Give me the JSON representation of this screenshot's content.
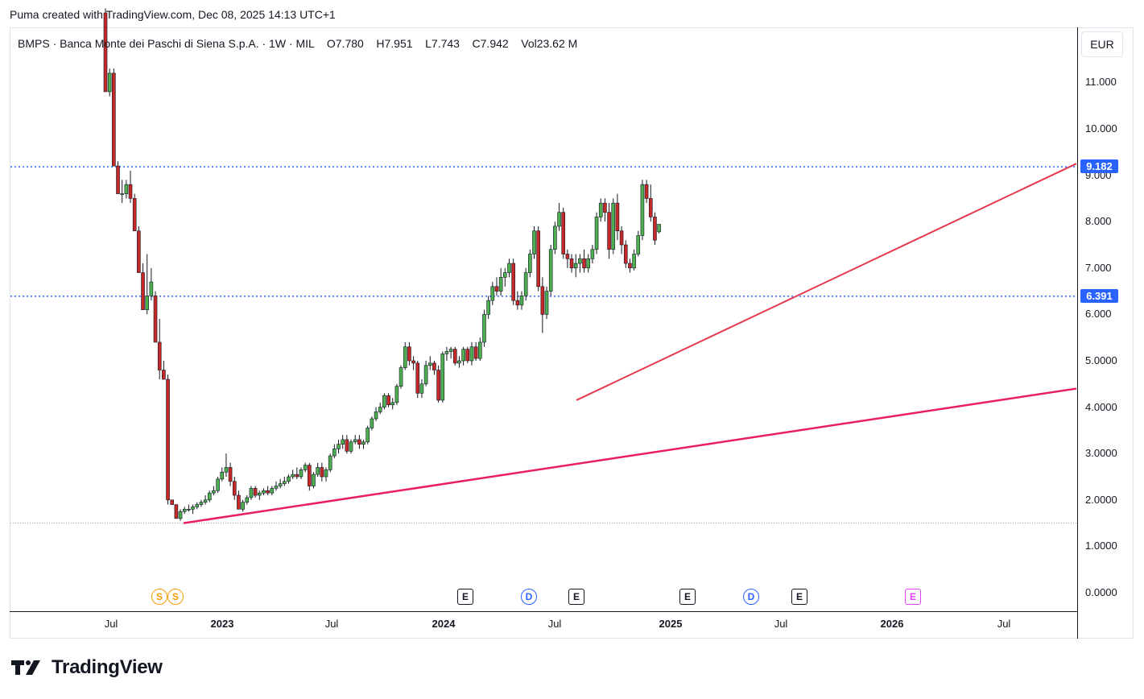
{
  "caption": "Puma created with TradingView.com, Dec 08, 2025 14:13 UTC+1",
  "legend": {
    "symbol": "BMPS · Banca Monte dei Paschi di Siena S.p.A. · 1W · MIL",
    "o_label": "O",
    "o_value": "7.780",
    "h_label": "H",
    "h_value": "7.951",
    "l_label": "L",
    "l_value": "7.743",
    "c_label": "C",
    "c_value": "7.942",
    "vol_label": "Vol",
    "vol_value": "23.62 M"
  },
  "currency": "EUR",
  "price_ticks": [
    "11.000",
    "10.000",
    "9.000",
    "8.000",
    "7.000",
    "6.000",
    "5.0000",
    "4.0000",
    "3.0000",
    "2.0000",
    "1.0000",
    "0.0000"
  ],
  "price_labels": [
    "9.182",
    "6.391"
  ],
  "time_ticks": [
    {
      "label": "Jul",
      "bold": false
    },
    {
      "label": "2023",
      "bold": true
    },
    {
      "label": "Jul",
      "bold": false
    },
    {
      "label": "2024",
      "bold": true
    },
    {
      "label": "Jul",
      "bold": false
    },
    {
      "label": "2025",
      "bold": true
    },
    {
      "label": "Jul",
      "bold": false
    },
    {
      "label": "2026",
      "bold": true
    },
    {
      "label": "Jul",
      "bold": false
    }
  ],
  "events": [
    {
      "type": "split",
      "label": "S"
    },
    {
      "type": "split",
      "label": "S"
    },
    {
      "type": "earn",
      "label": "E"
    },
    {
      "type": "div",
      "label": "D"
    },
    {
      "type": "earn",
      "label": "E"
    },
    {
      "type": "earn",
      "label": "E"
    },
    {
      "type": "div",
      "label": "D"
    },
    {
      "type": "earn",
      "label": "E"
    },
    {
      "type": "future",
      "label": "E"
    }
  ],
  "colors": {
    "up": "#4caf50",
    "down": "#c62828",
    "hline": "#2962ff",
    "trend1": "#e53950",
    "trend2": "#e91e63"
  },
  "chart_data": {
    "type": "candlestick",
    "timeframe": "1W",
    "price_range": [
      0,
      11.5
    ],
    "horizontal_levels": [
      9.182,
      6.391,
      1.5
    ],
    "candles_ohlc_weekly": [
      [
        12.5,
        12.6,
        10.8,
        10.8
      ],
      [
        10.8,
        11.3,
        10.7,
        11.2
      ],
      [
        11.2,
        11.3,
        9.2,
        9.2
      ],
      [
        9.2,
        9.3,
        8.6,
        8.6
      ],
      [
        8.6,
        8.9,
        8.4,
        8.6
      ],
      [
        8.6,
        8.9,
        8.5,
        8.8
      ],
      [
        8.8,
        9.1,
        8.4,
        8.5
      ],
      [
        8.5,
        8.6,
        7.8,
        7.8
      ],
      [
        7.8,
        7.9,
        6.9,
        6.9
      ],
      [
        6.9,
        7.1,
        6.1,
        6.1
      ],
      [
        6.1,
        7.3,
        6.0,
        6.4
      ],
      [
        6.4,
        7.0,
        6.3,
        6.7
      ],
      [
        6.4,
        6.5,
        5.4,
        5.4
      ],
      [
        5.4,
        5.9,
        4.6,
        4.8
      ],
      [
        4.8,
        5.0,
        4.6,
        4.6
      ],
      [
        4.6,
        4.7,
        1.9,
        2.0
      ],
      [
        2.0,
        2.0,
        1.9,
        1.9
      ],
      [
        1.9,
        1.9,
        1.6,
        1.6
      ],
      [
        1.6,
        1.8,
        1.55,
        1.75
      ],
      [
        1.75,
        1.85,
        1.7,
        1.8
      ],
      [
        1.8,
        1.9,
        1.75,
        1.8
      ],
      [
        1.8,
        1.9,
        1.7,
        1.85
      ],
      [
        1.85,
        1.95,
        1.8,
        1.9
      ],
      [
        1.9,
        2.0,
        1.85,
        1.95
      ],
      [
        1.95,
        2.1,
        1.9,
        2.0
      ],
      [
        2.0,
        2.2,
        1.95,
        2.15
      ],
      [
        2.15,
        2.3,
        2.1,
        2.2
      ],
      [
        2.2,
        2.5,
        2.15,
        2.45
      ],
      [
        2.45,
        2.7,
        2.4,
        2.6
      ],
      [
        2.6,
        3.0,
        2.5,
        2.7
      ],
      [
        2.7,
        2.8,
        2.3,
        2.4
      ],
      [
        2.4,
        2.5,
        2.0,
        2.1
      ],
      [
        2.1,
        2.2,
        1.8,
        1.8
      ],
      [
        1.8,
        2.0,
        1.75,
        1.95
      ],
      [
        1.95,
        2.1,
        1.9,
        2.05
      ],
      [
        2.05,
        2.3,
        2.0,
        2.25
      ],
      [
        2.25,
        2.3,
        2.05,
        2.1
      ],
      [
        2.1,
        2.2,
        2.0,
        2.15
      ],
      [
        2.15,
        2.25,
        2.1,
        2.2
      ],
      [
        2.2,
        2.3,
        2.1,
        2.15
      ],
      [
        2.15,
        2.3,
        2.1,
        2.25
      ],
      [
        2.25,
        2.4,
        2.2,
        2.3
      ],
      [
        2.3,
        2.45,
        2.25,
        2.35
      ],
      [
        2.35,
        2.5,
        2.3,
        2.4
      ],
      [
        2.4,
        2.55,
        2.35,
        2.5
      ],
      [
        2.5,
        2.65,
        2.45,
        2.55
      ],
      [
        2.55,
        2.7,
        2.45,
        2.5
      ],
      [
        2.5,
        2.7,
        2.45,
        2.65
      ],
      [
        2.65,
        2.8,
        2.6,
        2.75
      ],
      [
        2.75,
        2.8,
        2.2,
        2.3
      ],
      [
        2.3,
        2.6,
        2.25,
        2.55
      ],
      [
        2.55,
        2.8,
        2.5,
        2.7
      ],
      [
        2.7,
        2.8,
        2.4,
        2.5
      ],
      [
        2.5,
        2.7,
        2.4,
        2.65
      ],
      [
        2.65,
        3.0,
        2.6,
        2.95
      ],
      [
        2.95,
        3.2,
        2.9,
        3.1
      ],
      [
        3.1,
        3.3,
        3.0,
        3.2
      ],
      [
        3.2,
        3.4,
        3.1,
        3.3
      ],
      [
        3.3,
        3.4,
        3.0,
        3.05
      ],
      [
        3.05,
        3.3,
        3.0,
        3.25
      ],
      [
        3.25,
        3.4,
        3.2,
        3.3
      ],
      [
        3.3,
        3.4,
        3.1,
        3.2
      ],
      [
        3.2,
        3.3,
        3.1,
        3.25
      ],
      [
        3.25,
        3.6,
        3.2,
        3.55
      ],
      [
        3.55,
        3.8,
        3.5,
        3.75
      ],
      [
        3.75,
        4.0,
        3.7,
        3.9
      ],
      [
        3.9,
        4.1,
        3.85,
        4.0
      ],
      [
        4.0,
        4.3,
        3.95,
        4.25
      ],
      [
        4.25,
        4.3,
        4.0,
        4.05
      ],
      [
        4.05,
        4.2,
        3.95,
        4.1
      ],
      [
        4.1,
        4.5,
        4.05,
        4.45
      ],
      [
        4.45,
        4.9,
        4.4,
        4.85
      ],
      [
        4.85,
        5.4,
        4.8,
        5.3
      ],
      [
        5.3,
        5.4,
        4.9,
        5.0
      ],
      [
        5.0,
        5.1,
        4.8,
        4.95
      ],
      [
        4.95,
        5.0,
        4.2,
        4.3
      ],
      [
        4.3,
        4.6,
        4.2,
        4.5
      ],
      [
        4.5,
        5.0,
        4.45,
        4.9
      ],
      [
        4.9,
        5.1,
        4.8,
        4.95
      ],
      [
        4.95,
        5.0,
        4.7,
        4.8
      ],
      [
        4.8,
        4.9,
        4.1,
        4.15
      ],
      [
        4.15,
        5.2,
        4.1,
        5.15
      ],
      [
        5.15,
        5.3,
        5.0,
        5.2
      ],
      [
        5.2,
        5.3,
        5.05,
        5.25
      ],
      [
        5.25,
        5.3,
        4.9,
        4.95
      ],
      [
        4.95,
        5.1,
        4.85,
        5.0
      ],
      [
        5.0,
        5.3,
        4.9,
        5.25
      ],
      [
        5.25,
        5.3,
        4.95,
        5.0
      ],
      [
        5.0,
        5.4,
        4.9,
        5.3
      ],
      [
        5.3,
        5.4,
        5.0,
        5.05
      ],
      [
        5.05,
        5.5,
        5.0,
        5.4
      ],
      [
        5.4,
        6.1,
        5.3,
        6.0
      ],
      [
        6.0,
        6.4,
        5.9,
        6.3
      ],
      [
        6.3,
        6.7,
        6.2,
        6.6
      ],
      [
        6.6,
        6.8,
        6.4,
        6.5
      ],
      [
        6.5,
        7.0,
        6.4,
        6.8
      ],
      [
        6.8,
        7.0,
        6.6,
        6.9
      ],
      [
        6.9,
        7.2,
        6.8,
        7.1
      ],
      [
        7.1,
        7.2,
        6.2,
        6.3
      ],
      [
        6.3,
        6.5,
        6.1,
        6.2
      ],
      [
        6.2,
        6.5,
        6.1,
        6.4
      ],
      [
        6.4,
        7.0,
        6.3,
        6.9
      ],
      [
        6.9,
        7.4,
        6.8,
        7.3
      ],
      [
        7.3,
        7.9,
        7.2,
        7.8
      ],
      [
        7.8,
        7.9,
        6.5,
        6.6
      ],
      [
        6.6,
        6.8,
        5.6,
        6.0
      ],
      [
        6.0,
        6.6,
        5.9,
        6.5
      ],
      [
        6.5,
        7.5,
        6.4,
        7.4
      ],
      [
        7.4,
        8.0,
        7.3,
        7.9
      ],
      [
        7.9,
        8.4,
        7.8,
        8.2
      ],
      [
        8.2,
        8.3,
        7.2,
        7.3
      ],
      [
        7.3,
        7.4,
        7.0,
        7.2
      ],
      [
        7.2,
        7.3,
        6.9,
        7.0
      ],
      [
        7.0,
        7.3,
        6.8,
        7.1
      ],
      [
        7.1,
        7.3,
        6.9,
        7.2
      ],
      [
        7.2,
        7.4,
        6.9,
        7.0
      ],
      [
        7.0,
        7.3,
        6.9,
        7.2
      ],
      [
        7.2,
        7.5,
        7.1,
        7.4
      ],
      [
        7.4,
        8.2,
        7.3,
        8.1
      ],
      [
        8.1,
        8.5,
        8.0,
        8.4
      ],
      [
        8.4,
        8.5,
        8.0,
        8.2
      ],
      [
        8.2,
        8.4,
        7.2,
        7.4
      ],
      [
        7.4,
        8.5,
        7.3,
        8.4
      ],
      [
        8.4,
        8.6,
        7.6,
        7.8
      ],
      [
        7.8,
        7.9,
        7.3,
        7.5
      ],
      [
        7.5,
        7.6,
        7.0,
        7.1
      ],
      [
        7.1,
        7.2,
        6.9,
        7.0
      ],
      [
        7.0,
        7.4,
        6.95,
        7.3
      ],
      [
        7.3,
        7.8,
        7.25,
        7.7
      ],
      [
        7.7,
        8.9,
        7.6,
        8.8
      ],
      [
        8.8,
        8.9,
        8.4,
        8.5
      ],
      [
        8.5,
        8.8,
        8.0,
        8.1
      ],
      [
        8.1,
        8.2,
        7.5,
        7.6
      ],
      [
        7.78,
        7.951,
        7.743,
        7.942
      ]
    ],
    "trendlines": [
      {
        "from_date": "2022-10",
        "from_price": 1.5,
        "to": "right edge",
        "to_price": 4.4
      },
      {
        "from_date": "2024-07",
        "from_price": 4.15,
        "to": "right edge",
        "to_price": 9.25
      }
    ]
  }
}
